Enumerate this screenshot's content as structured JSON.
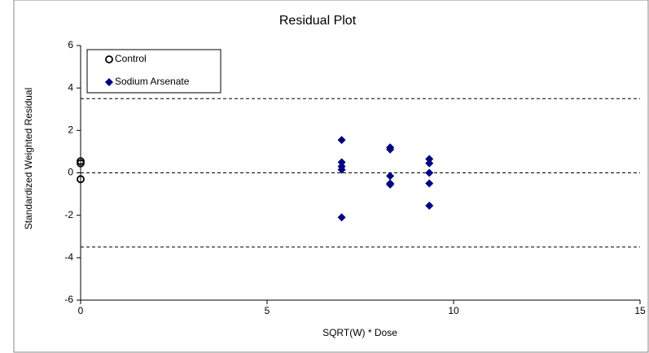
{
  "chart_data": {
    "type": "scatter",
    "title": "Residual Plot",
    "x_label": "SQRT(W) * Dose",
    "y_label": "Standardized Weighted Residual",
    "xlim": [
      0,
      15
    ],
    "xticks": [
      0,
      5,
      10,
      15
    ],
    "ylim": [
      -6,
      6
    ],
    "yticks": [
      -6,
      -4,
      -2,
      0,
      2,
      4,
      6
    ],
    "hlines": [
      3.5,
      0,
      -3.5
    ],
    "legend": "upper left",
    "series": [
      {
        "name": "Control",
        "color": "#000000",
        "marker": "open-circle",
        "x": [
          0,
          0,
          0
        ],
        "values": [
          0.55,
          0.45,
          -0.3
        ]
      },
      {
        "name": "Sodium Arsenate",
        "color": "#000080",
        "marker": "diamond",
        "x": [
          7.0,
          7.0,
          7.0,
          7.0,
          7.0,
          8.3,
          8.3,
          8.3,
          8.3,
          8.3,
          9.35,
          9.35,
          9.35,
          9.35,
          9.35
        ],
        "values": [
          1.55,
          0.5,
          0.3,
          0.15,
          -2.1,
          1.2,
          1.1,
          -0.15,
          -0.5,
          -0.55,
          0.65,
          0.45,
          0.0,
          -0.5,
          -1.55
        ]
      }
    ]
  }
}
